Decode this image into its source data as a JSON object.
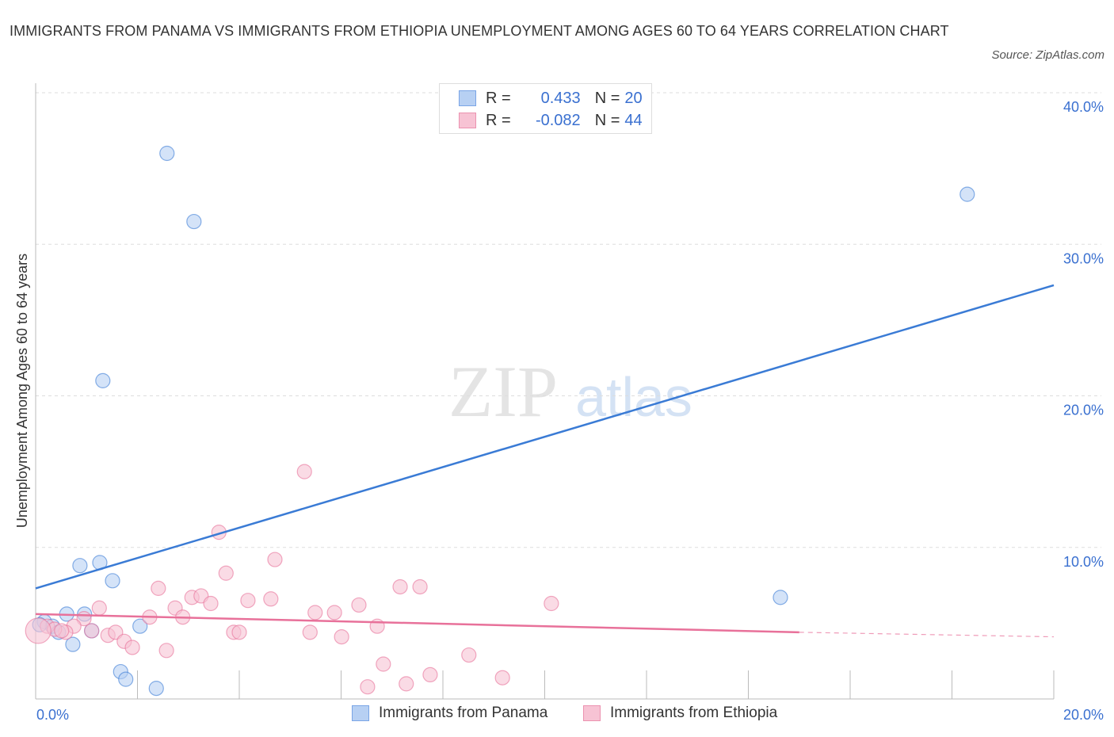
{
  "title": "IMMIGRANTS FROM PANAMA VS IMMIGRANTS FROM ETHIOPIA UNEMPLOYMENT AMONG AGES 60 TO 64 YEARS CORRELATION CHART",
  "source": "Source: ZipAtlas.com",
  "watermark": {
    "zip": "ZIP",
    "atlas": "atlas"
  },
  "legend": {
    "r_label": "R =",
    "n_label": "N =",
    "panama": {
      "r": "0.433",
      "n": "20"
    },
    "ethiopia": {
      "r": "-0.082",
      "n": "44"
    }
  },
  "colors": {
    "panama": "#3a7bd5",
    "panama_fill": "#b7d0f3",
    "ethiopia": "#e8719a",
    "ethiopia_fill": "#f7c3d4",
    "axis_label": "#3a70d0"
  },
  "chart_data": {
    "type": "scatter",
    "title": "IMMIGRANTS FROM PANAMA VS IMMIGRANTS FROM ETHIOPIA UNEMPLOYMENT AMONG AGES 60 TO 64 YEARS CORRELATION CHART",
    "xlabel": "",
    "ylabel": "Unemployment Among Ages 60 to 64 years",
    "xlim": [
      0,
      20
    ],
    "ylim": [
      0,
      40
    ],
    "x_tick_labels": [
      "0.0%",
      "20.0%"
    ],
    "y_tick_labels": [
      "10.0%",
      "20.0%",
      "30.0%",
      "40.0%"
    ],
    "y_ticks": [
      10,
      20,
      30,
      40
    ],
    "x_ticks": [
      0,
      2,
      4,
      6,
      8,
      10,
      12,
      14,
      16,
      18,
      20
    ],
    "grid": true,
    "legend_position": "bottom",
    "series": [
      {
        "name": "Immigrants from Panama",
        "trend": [
          [
            0,
            7.3
          ],
          [
            20,
            27.3
          ]
        ],
        "points": [
          [
            2.58,
            36.0
          ],
          [
            3.11,
            31.5
          ],
          [
            18.3,
            33.3
          ],
          [
            1.32,
            21.0
          ],
          [
            0.87,
            8.8
          ],
          [
            1.26,
            9.0
          ],
          [
            1.51,
            7.8
          ],
          [
            14.63,
            6.7
          ],
          [
            0.61,
            5.6
          ],
          [
            0.96,
            5.6
          ],
          [
            0.17,
            5.1
          ],
          [
            0.33,
            4.8
          ],
          [
            0.45,
            4.4
          ],
          [
            1.1,
            4.5
          ],
          [
            2.05,
            4.8
          ],
          [
            0.73,
            3.6
          ],
          [
            1.67,
            1.8
          ],
          [
            1.77,
            1.3
          ],
          [
            2.37,
            0.7
          ],
          [
            0.08,
            4.9
          ]
        ]
      },
      {
        "name": "Immigrants from Ethiopia",
        "trend": [
          [
            0,
            5.6
          ],
          [
            15,
            4.4
          ]
        ],
        "trend_dashed": [
          [
            15,
            4.4
          ],
          [
            20,
            4.1
          ]
        ],
        "points": [
          [
            5.28,
            15.0
          ],
          [
            3.6,
            11.0
          ],
          [
            4.7,
            9.2
          ],
          [
            3.74,
            8.3
          ],
          [
            2.41,
            7.3
          ],
          [
            7.16,
            7.4
          ],
          [
            7.55,
            7.4
          ],
          [
            10.13,
            6.3
          ],
          [
            1.25,
            6.0
          ],
          [
            3.07,
            6.7
          ],
          [
            3.25,
            6.8
          ],
          [
            3.44,
            6.3
          ],
          [
            2.74,
            6.0
          ],
          [
            4.17,
            6.5
          ],
          [
            4.62,
            6.6
          ],
          [
            5.49,
            5.7
          ],
          [
            5.87,
            5.7
          ],
          [
            6.35,
            6.2
          ],
          [
            2.24,
            5.4
          ],
          [
            2.89,
            5.4
          ],
          [
            0.95,
            5.3
          ],
          [
            0.75,
            4.8
          ],
          [
            0.59,
            4.4
          ],
          [
            1.42,
            4.2
          ],
          [
            1.57,
            4.4
          ],
          [
            1.74,
            3.8
          ],
          [
            1.9,
            3.4
          ],
          [
            3.89,
            4.4
          ],
          [
            4.0,
            4.4
          ],
          [
            5.39,
            4.4
          ],
          [
            6.01,
            4.1
          ],
          [
            6.71,
            4.8
          ],
          [
            2.57,
            3.2
          ],
          [
            6.83,
            2.3
          ],
          [
            8.51,
            2.9
          ],
          [
            7.75,
            1.6
          ],
          [
            9.17,
            1.4
          ],
          [
            6.52,
            0.8
          ],
          [
            7.28,
            1.0
          ],
          [
            0.23,
            4.8
          ],
          [
            0.37,
            4.6
          ],
          [
            0.05,
            4.5
          ],
          [
            0.51,
            4.5
          ],
          [
            1.1,
            4.5
          ]
        ]
      }
    ]
  }
}
